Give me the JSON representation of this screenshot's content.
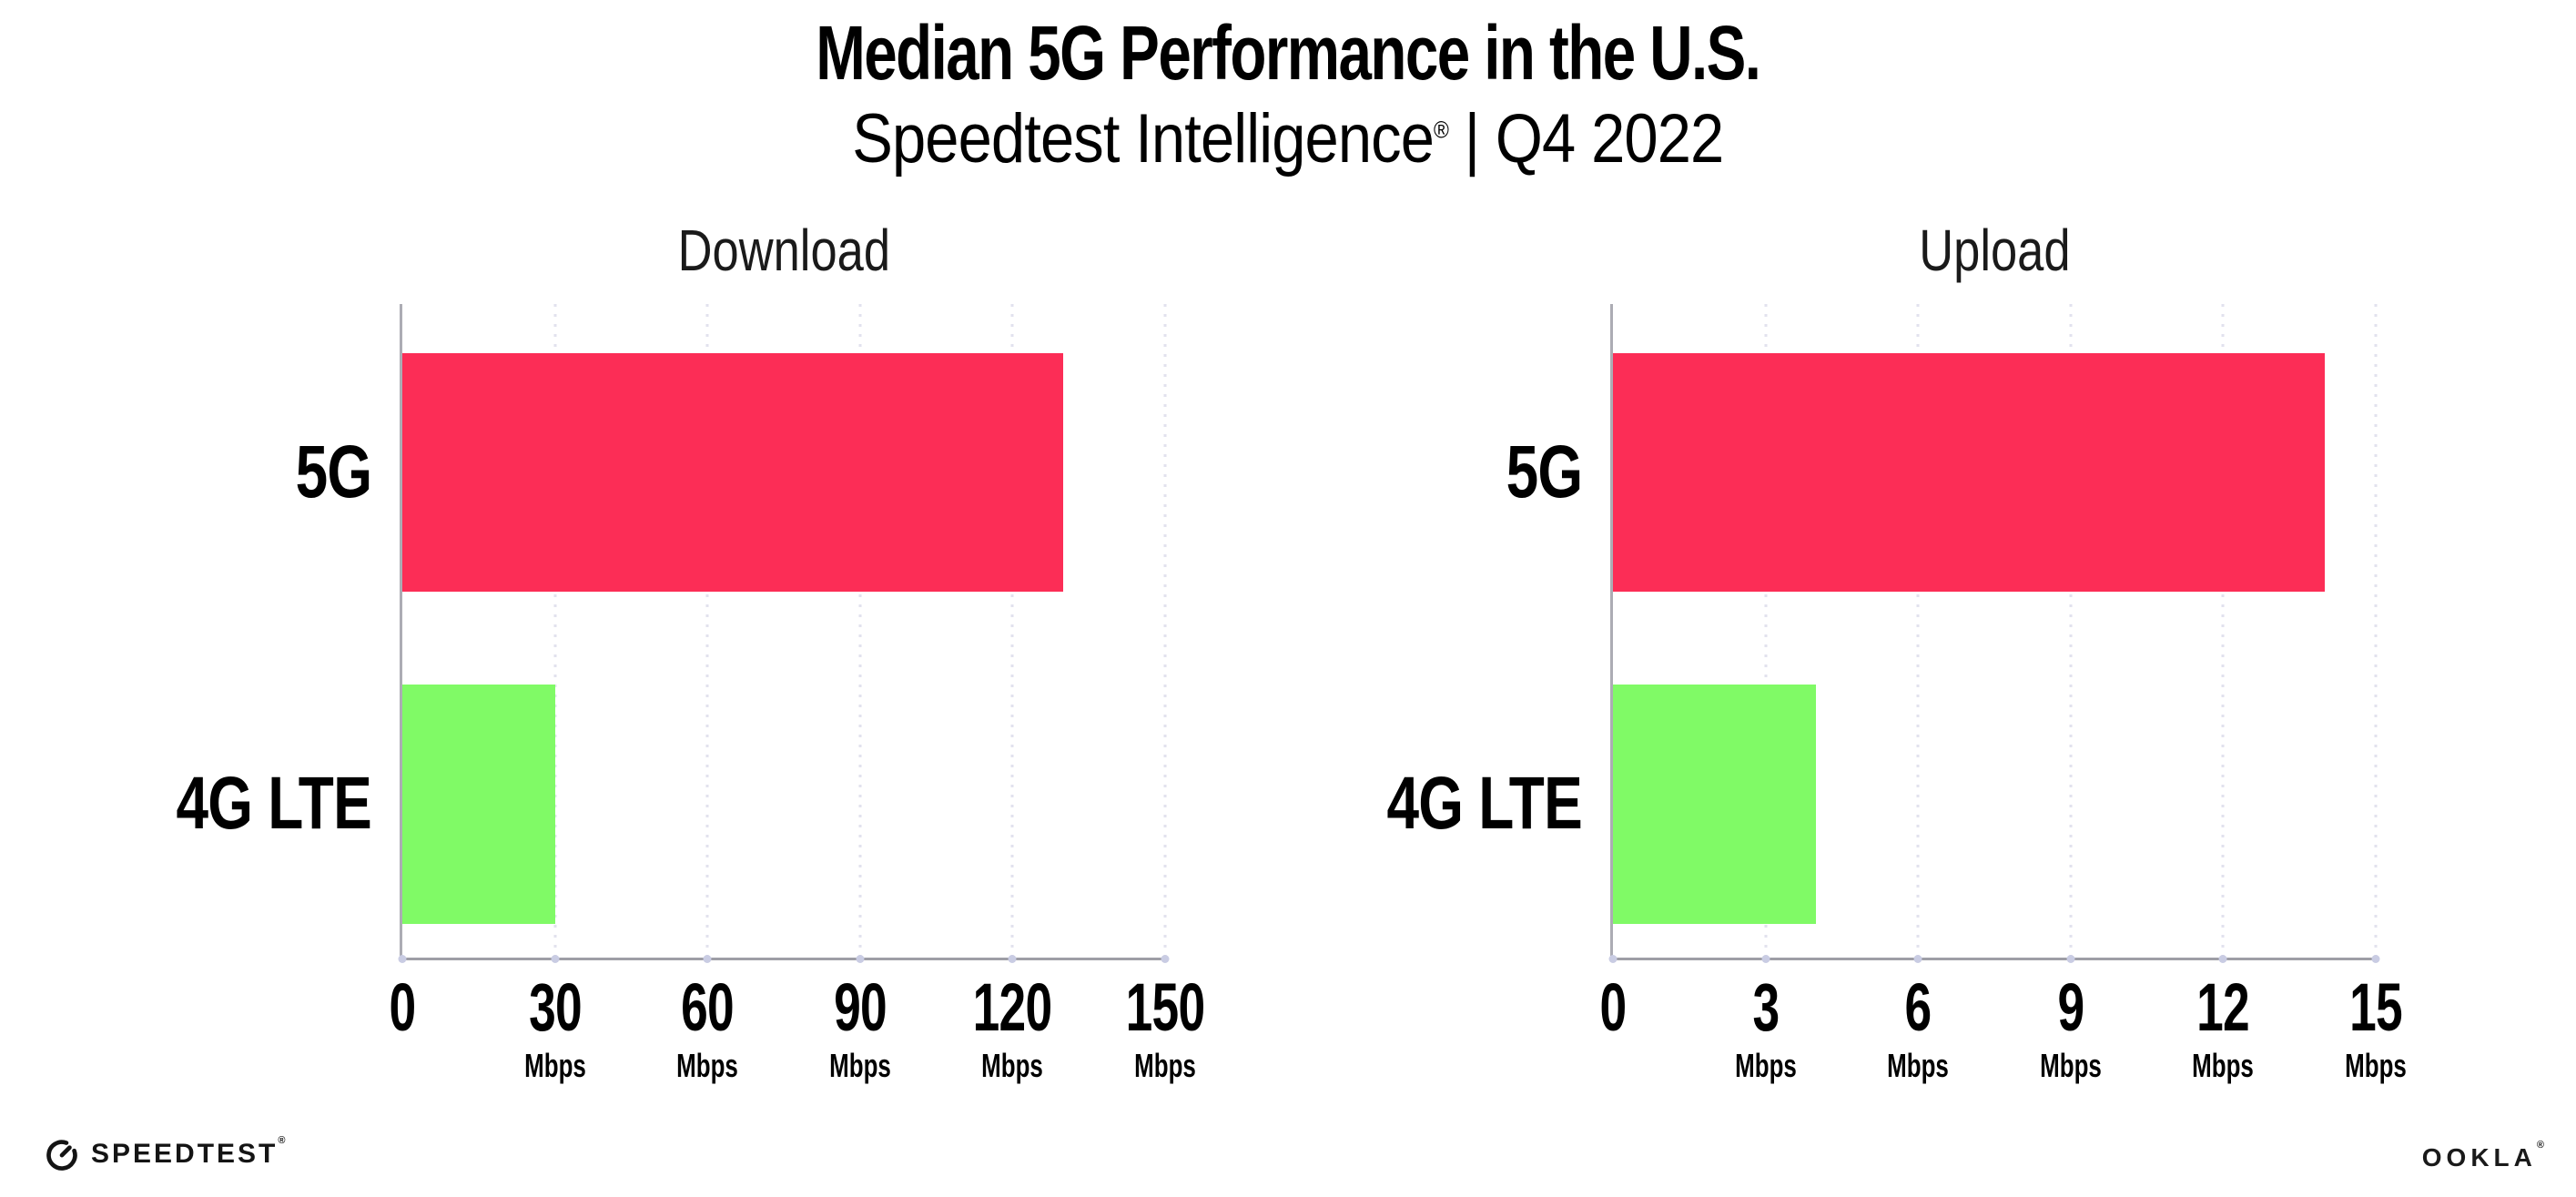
{
  "header": {
    "title": "Median 5G Performance in the U.S.",
    "subtitle_brand": "Speedtest Intelligence",
    "subtitle_reg": "®",
    "subtitle_rest": " | Q4 2022"
  },
  "footer": {
    "speedtest_label": "SPEEDTEST",
    "speedtest_reg": "®",
    "ookla_label": "OOKLA",
    "ookla_reg": "®"
  },
  "colors": {
    "bar_5g": "#FC2D56",
    "bar_4g_lte": "#80FA66",
    "y_axis_line": "#ACACB4",
    "x_axis_line": "#9EYEA6",
    "grid_dot": "#E2E2EE",
    "axis_tick_dot": "#C9CCE3",
    "text": "#000000"
  },
  "chart_data": [
    {
      "type": "bar",
      "orientation": "horizontal",
      "title": "Download",
      "categories": [
        "5G",
        "4G LTE"
      ],
      "values": [
        130,
        30
      ],
      "unit": "Mbps",
      "xlim": [
        0,
        150
      ],
      "xticks": [
        0,
        30,
        60,
        90,
        120,
        150
      ],
      "grid": "dotted-vertical",
      "legend": "none",
      "bar_colors": [
        "#FC2D56",
        "#80FA66"
      ]
    },
    {
      "type": "bar",
      "orientation": "horizontal",
      "title": "Upload",
      "categories": [
        "5G",
        "4G LTE"
      ],
      "values": [
        14,
        4
      ],
      "unit": "Mbps",
      "xlim": [
        0,
        15
      ],
      "xticks": [
        0,
        3,
        6,
        9,
        12,
        15
      ],
      "grid": "dotted-vertical",
      "legend": "none",
      "bar_colors": [
        "#FC2D56",
        "#80FA66"
      ]
    }
  ]
}
